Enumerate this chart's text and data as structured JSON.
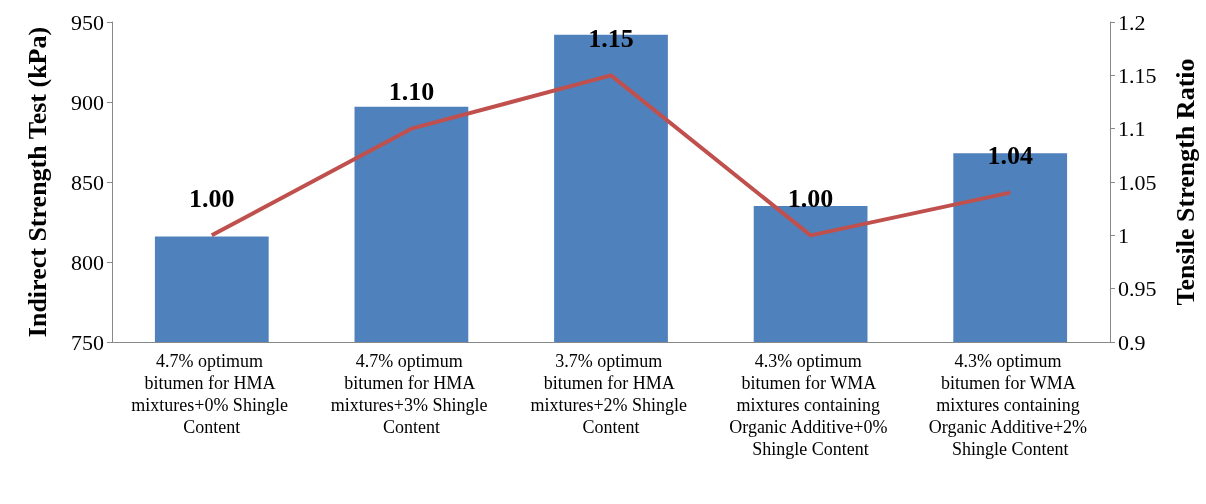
{
  "chart_data": {
    "type": "bar",
    "ylabel": "Indirect Strength Test (kPa)",
    "y2label": "Tensile Strength Ratio",
    "categories": [
      "4.7% optimum bitumen for HMA mixtures+0% Shingle Content",
      "4.7% optimum bitumen for HMA mixtures+3% Shingle Content",
      "3.7% optimum bitumen for HMA mixtures+2% Shingle Content",
      "4.3% optimum bitumen for WMA mixtures containing Organic Additive+0% Shingle Content",
      "4.3% optimum bitumen for WMA mixtures containing Organic Additive+2% Shingle Content"
    ],
    "series": [
      {
        "color": "#4f81bd",
        "values": [
          816,
          897,
          942,
          835,
          868
        ]
      },
      {
        "type": "line",
        "axis": "y2",
        "color": "#c0504d",
        "values": [
          1.0,
          1.1,
          1.15,
          1.0,
          1.04
        ],
        "value_labels": [
          "1.00",
          "1.10",
          "1.15",
          "1.00",
          "1.04"
        ]
      }
    ],
    "ylim": [
      750,
      950
    ],
    "yticks": [
      750,
      800,
      850,
      900,
      950
    ],
    "y2lim": [
      0.9,
      1.2
    ],
    "y2ticks": [
      0.9,
      0.95,
      1,
      1.05,
      1.1,
      1.15,
      1.2
    ],
    "grid": false,
    "marker": "none",
    "line_style": "solid"
  }
}
